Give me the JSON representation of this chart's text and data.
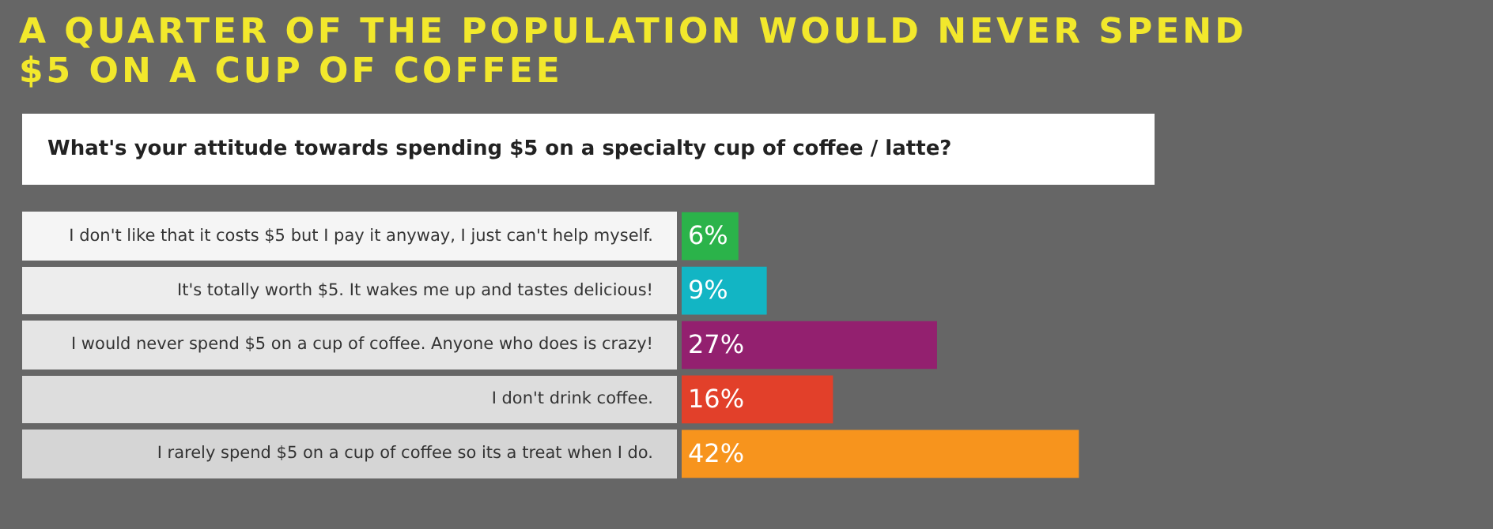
{
  "chart_data": {
    "type": "bar",
    "orientation": "horizontal",
    "title": "A QUARTER OF THE POPULATION WOULD NEVER SPEND $5 ON A CUP OF COFFEE",
    "subtitle": "What's your attitude towards spending $5 on a specialty cup of coffee / latte?",
    "categories": [
      "I don't like that it costs $5 but I pay it anyway, I just can't help myself.",
      "It's totally worth $5. It wakes me up and tastes delicious!",
      "I would never spend $5 on a cup of coffee. Anyone who does is crazy!",
      "I don't drink coffee.",
      "I rarely spend $5 on a cup of coffee so its a treat when I do."
    ],
    "values": [
      6,
      9,
      27,
      16,
      42
    ],
    "colors": [
      "#2bb34a",
      "#12b5c4",
      "#93206f",
      "#e2402a",
      "#f7941d"
    ],
    "value_labels": [
      "6%",
      "9%",
      "27%",
      "16%",
      "42%"
    ],
    "tick_labels": "y"
  }
}
